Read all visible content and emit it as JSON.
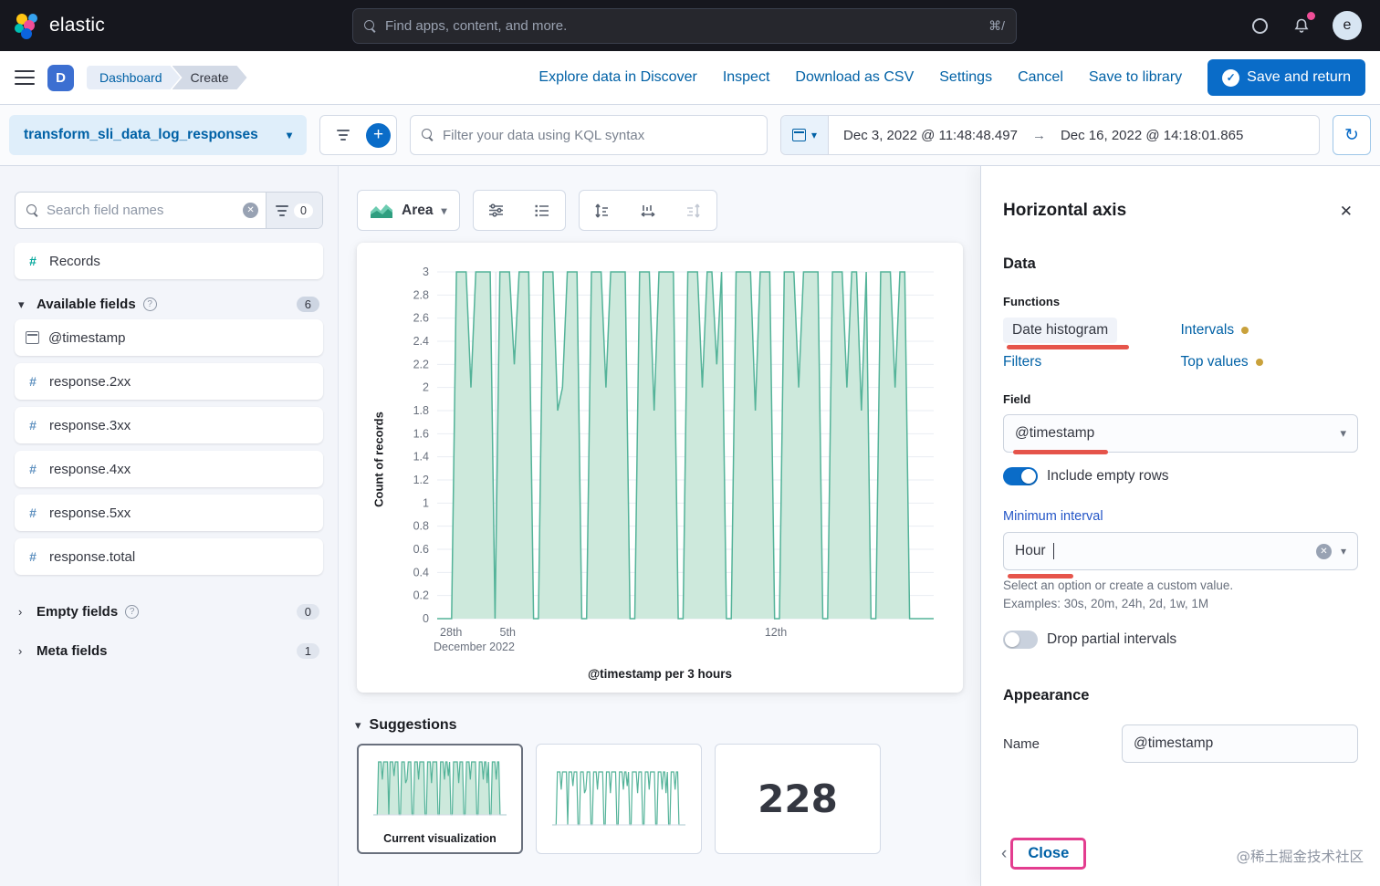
{
  "colors": {
    "accent_blue": "#0a6cc8",
    "link_blue": "#0061a6",
    "chart_stroke": "#54b399",
    "chart_fill": "#cde9dc",
    "annotation_red": "#e4473c",
    "annotation_pink": "#e33d8f",
    "warning_dot": "#c9a13b",
    "notification_pink": "#f04e98"
  },
  "icons": {
    "chevron_down": "▾",
    "chevron_right": "›",
    "chevron_left": "‹",
    "close": "✕",
    "arrow_right": "→",
    "refresh": "↻",
    "plus": "+",
    "hash": "#",
    "question": "?",
    "check": "✓",
    "clear": "✕",
    "dot": "●"
  },
  "header": {
    "brand": "elastic",
    "search_placeholder": "Find apps, content, and more.",
    "shortcut": "⌘/",
    "avatar_initial": "e"
  },
  "nav": {
    "app_badge": "D",
    "breadcrumbs": [
      "Dashboard",
      "Create"
    ],
    "links": [
      "Explore data in Discover",
      "Inspect",
      "Download as CSV",
      "Settings",
      "Cancel",
      "Save to library"
    ],
    "primary_label": "Save and return"
  },
  "querybar": {
    "data_view": "transform_sli_data_log_responses",
    "kql_placeholder": "Filter your data using KQL syntax",
    "date_start": "Dec 3, 2022 @ 11:48:48.497",
    "date_end": "Dec 16, 2022 @ 14:18:01.865"
  },
  "sidebar": {
    "search_placeholder": "Search field names",
    "filter_count": "0",
    "records_label": "Records",
    "available_label": "Available fields",
    "available_count": "6",
    "fields": [
      {
        "name": "@timestamp",
        "type": "date"
      },
      {
        "name": "response.2xx",
        "type": "number"
      },
      {
        "name": "response.3xx",
        "type": "number"
      },
      {
        "name": "response.4xx",
        "type": "number"
      },
      {
        "name": "response.5xx",
        "type": "number"
      },
      {
        "name": "response.total",
        "type": "number"
      }
    ],
    "empty_label": "Empty fields",
    "empty_count": "0",
    "meta_label": "Meta fields",
    "meta_count": "1"
  },
  "viz_toolbar": {
    "chart_type": "Area"
  },
  "chart_data": {
    "type": "area",
    "title": "",
    "xlabel": "@timestamp per 3 hours",
    "ylabel": "Count of records",
    "ylim": [
      0,
      3
    ],
    "x_range": [
      "Dec 3, 2022 @ 11:48:48.497",
      "Dec 16, 2022 @ 14:18:01.865"
    ],
    "bucket": "3 hours",
    "grid": true,
    "y_ticks": [
      "3",
      "2.8",
      "2.6",
      "2.4",
      "2.2",
      "2",
      "1.8",
      "1.6",
      "1.4",
      "1.2",
      "1",
      "0.8",
      "0.6",
      "0.4",
      "0.2",
      "0"
    ],
    "x_ticks": [
      {
        "label": "28th",
        "pos": 0.028
      },
      {
        "label": "5th",
        "pos": 0.142
      },
      {
        "label": "12th",
        "pos": 0.682
      }
    ],
    "x_context": "December 2022",
    "x_gridlines": [
      0.118,
      0.655
    ],
    "values": [
      0,
      0,
      0,
      0,
      3,
      3,
      3,
      2,
      3,
      3,
      3,
      3,
      0,
      3,
      3,
      3,
      2.2,
      3,
      3,
      3,
      0,
      0,
      3,
      3,
      3,
      1.8,
      2,
      3,
      3,
      3,
      0,
      0,
      3,
      3,
      3,
      2,
      3,
      3,
      3,
      3,
      0,
      0,
      3,
      3,
      3,
      1.8,
      3,
      3,
      3,
      3,
      0,
      0,
      3,
      3,
      3,
      2,
      3,
      3,
      2.2,
      3,
      0,
      0,
      3,
      3,
      3,
      3,
      1.8,
      3,
      3,
      3,
      0,
      0,
      3,
      3,
      3,
      2,
      3,
      3,
      3,
      3,
      0,
      0,
      3,
      3,
      3,
      2,
      3,
      3,
      1.8,
      3,
      0,
      0,
      3,
      3,
      3,
      2,
      3,
      3,
      0,
      0,
      0,
      0,
      0,
      0
    ]
  },
  "suggestions": {
    "label": "Suggestions",
    "current_caption": "Current visualization",
    "metric": "228"
  },
  "panel": {
    "title": "Horizontal axis",
    "data_section": "Data",
    "functions": {
      "label": "Functions",
      "options": [
        {
          "label": "Date histogram",
          "selected": true
        },
        {
          "label": "Intervals",
          "dot": true
        },
        {
          "label": "Filters"
        },
        {
          "label": "Top values",
          "dot": true
        }
      ]
    },
    "field": {
      "label": "Field",
      "value": "@timestamp"
    },
    "include_empty_rows": {
      "label": "Include empty rows",
      "on": true
    },
    "minimum_interval": {
      "label": "Minimum interval",
      "value": "Hour",
      "help1": "Select an option or create a custom value.",
      "help2": "Examples: 30s, 20m, 24h, 2d, 1w, 1M"
    },
    "drop_partial": {
      "label": "Drop partial intervals",
      "on": false
    },
    "appearance_section": "Appearance",
    "name_field": {
      "label": "Name",
      "value": "@timestamp"
    },
    "close_label": "Close"
  },
  "watermark": "@稀土掘金技术社区"
}
